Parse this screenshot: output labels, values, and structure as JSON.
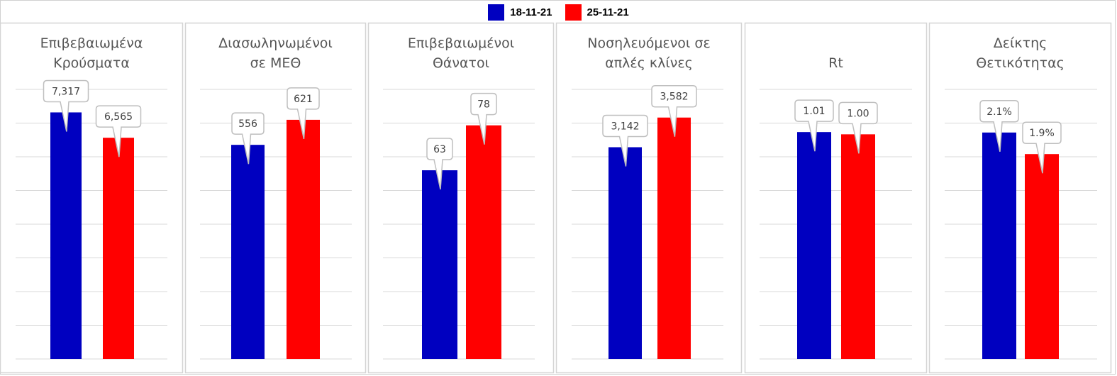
{
  "legend": {
    "series": [
      {
        "name": "18-11-21",
        "color": "#0000c0"
      },
      {
        "name": "25-11-21",
        "color": "#ff0000"
      }
    ]
  },
  "chart_data": [
    {
      "type": "bar",
      "title_lines": [
        "Επιβεβαιωμένα",
        "Κρούσματα"
      ],
      "categories": [
        "18-11-21",
        "25-11-21"
      ],
      "values": [
        7317,
        6565
      ],
      "value_labels": [
        "7,317",
        "6,565"
      ],
      "ylim": [
        0,
        8000
      ],
      "grid": true
    },
    {
      "type": "bar",
      "title_lines": [
        "Διασωληνωμένοι",
        "σε ΜΕΘ"
      ],
      "categories": [
        "18-11-21",
        "25-11-21"
      ],
      "values": [
        556,
        621
      ],
      "value_labels": [
        "556",
        "621"
      ],
      "ylim": [
        0,
        700
      ],
      "grid": true
    },
    {
      "type": "bar",
      "title_lines": [
        "Επιβεβαιωμένοι",
        "Θάνατοι"
      ],
      "categories": [
        "18-11-21",
        "25-11-21"
      ],
      "values": [
        63,
        78
      ],
      "value_labels": [
        "63",
        "78"
      ],
      "ylim": [
        0,
        90
      ],
      "grid": true
    },
    {
      "type": "bar",
      "title_lines": [
        "Νοσηλευόμενοι σε",
        "απλές κλίνες"
      ],
      "categories": [
        "18-11-21",
        "25-11-21"
      ],
      "values": [
        3142,
        3582
      ],
      "value_labels": [
        "3,142",
        "3,582"
      ],
      "ylim": [
        0,
        4000
      ],
      "grid": true
    },
    {
      "type": "bar",
      "title_lines": [
        "Rt"
      ],
      "categories": [
        "18-11-21",
        "25-11-21"
      ],
      "values": [
        1.01,
        1.0
      ],
      "value_labels": [
        "1.01",
        "1.00"
      ],
      "ylim": [
        0,
        1.2
      ],
      "grid": true
    },
    {
      "type": "bar",
      "title_lines": [
        "Δείκτης",
        "Θετικότητας"
      ],
      "categories": [
        "18-11-21",
        "25-11-21"
      ],
      "values": [
        2.1,
        1.9
      ],
      "value_labels": [
        "2.1%",
        "1.9%"
      ],
      "ylim": [
        0,
        2.5
      ],
      "grid": true
    }
  ]
}
